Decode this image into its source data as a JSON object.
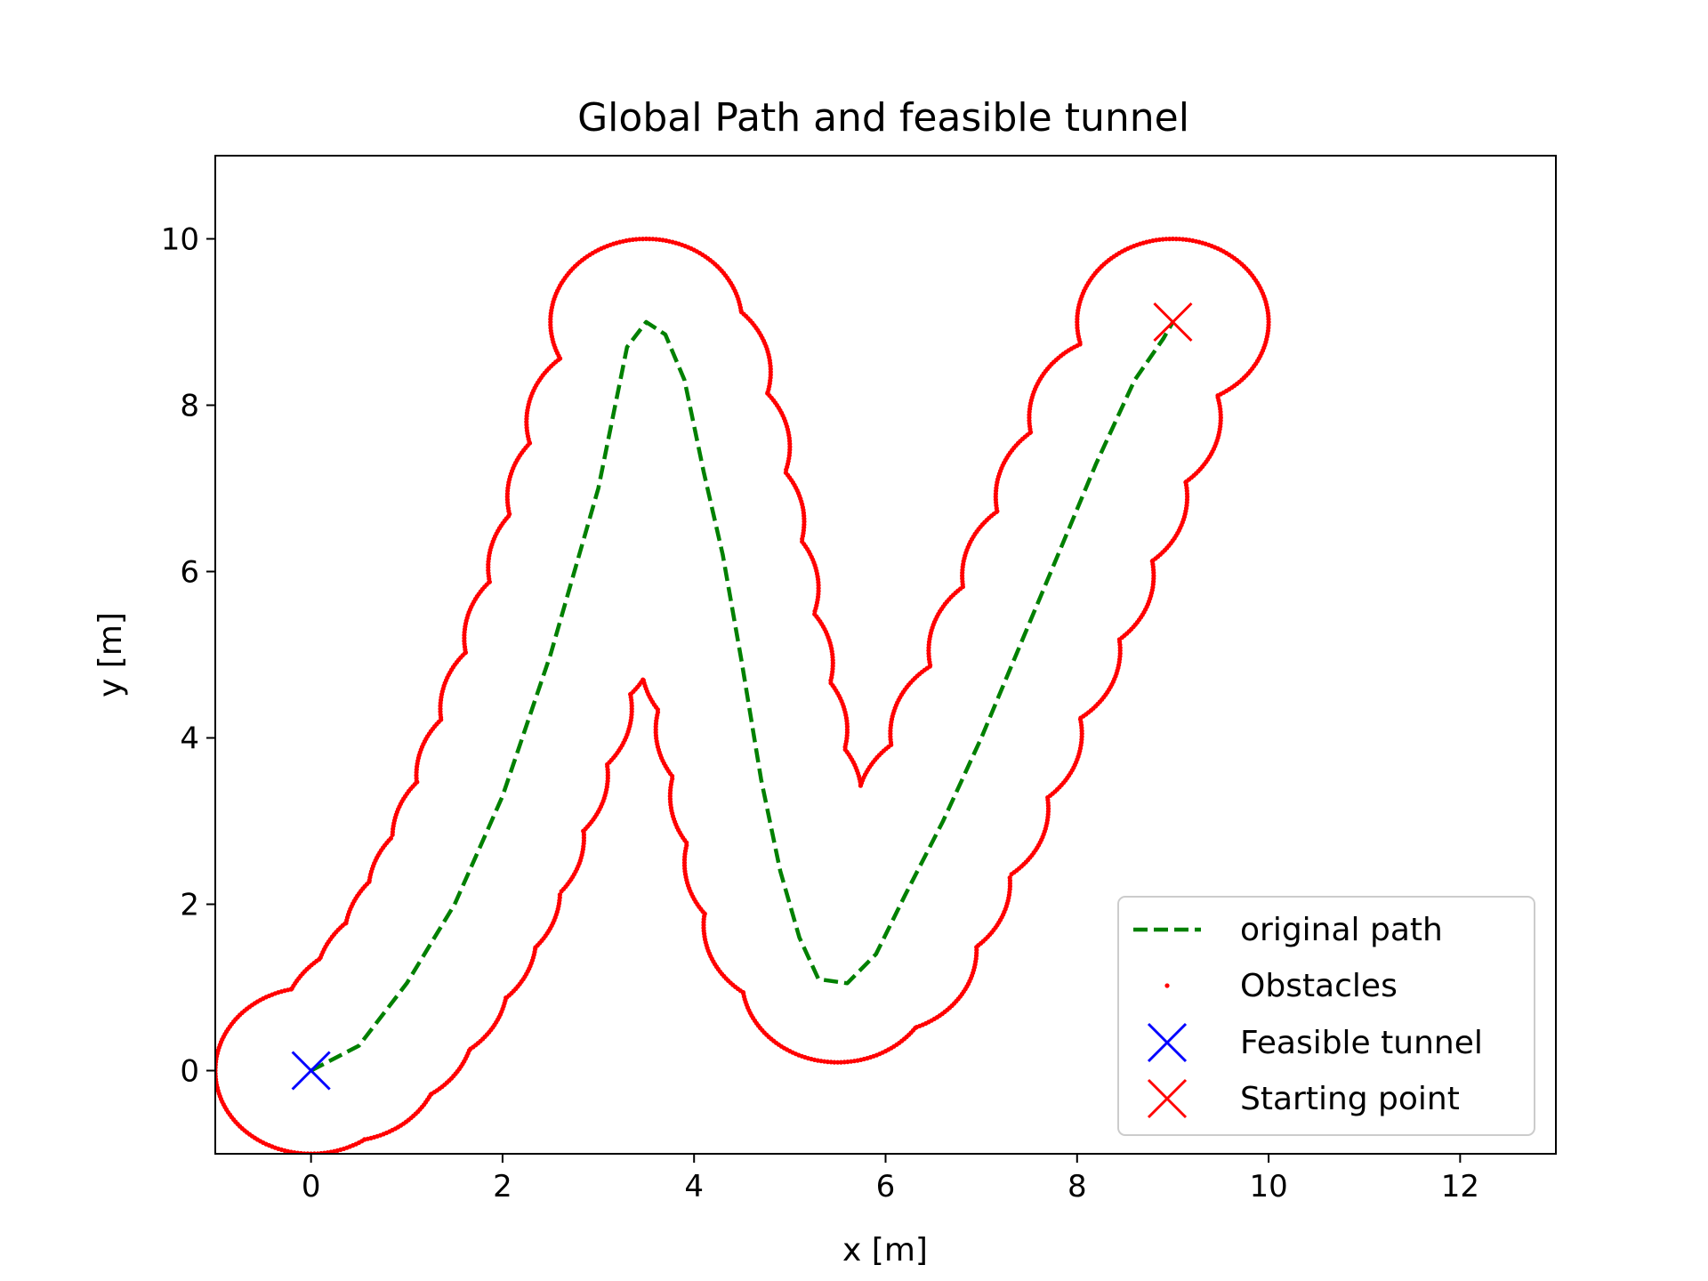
{
  "chart_data": {
    "type": "scatter",
    "title": "Global Path and feasible tunnel",
    "xlabel": "x [m]",
    "ylabel": "y [m]",
    "xlim": [
      -1,
      13
    ],
    "ylim": [
      -1,
      11
    ],
    "xticks": [
      0,
      2,
      4,
      6,
      8,
      10,
      12
    ],
    "yticks": [
      0,
      2,
      4,
      6,
      8,
      10
    ],
    "grid": false,
    "legend_position": "lower-right",
    "series": [
      {
        "name": "original path",
        "kind": "line",
        "style": "dashed",
        "color": "#008000",
        "points": [
          [
            0,
            0
          ],
          [
            0.5,
            0.3
          ],
          [
            1,
            1.05
          ],
          [
            1.5,
            2
          ],
          [
            2,
            3.3
          ],
          [
            2.5,
            5
          ],
          [
            3,
            7
          ],
          [
            3.3,
            8.7
          ],
          [
            3.5,
            9
          ],
          [
            3.7,
            8.85
          ],
          [
            3.9,
            8.3
          ],
          [
            4.1,
            7.2
          ],
          [
            4.3,
            6.2
          ],
          [
            4.5,
            4.9
          ],
          [
            4.7,
            3.5
          ],
          [
            4.9,
            2.4
          ],
          [
            5.1,
            1.6
          ],
          [
            5.3,
            1.1
          ],
          [
            5.6,
            1.05
          ],
          [
            5.9,
            1.4
          ],
          [
            6.2,
            2.1
          ],
          [
            6.6,
            3
          ],
          [
            7,
            4
          ],
          [
            7.4,
            5.1
          ],
          [
            7.8,
            6.2
          ],
          [
            8.2,
            7.3
          ],
          [
            8.6,
            8.3
          ],
          [
            8.9,
            8.8
          ],
          [
            9,
            9
          ]
        ]
      },
      {
        "name": "Obstacles",
        "kind": "points",
        "color": "#ff0000",
        "marker_size": 1,
        "obstacle_radius": 1.0,
        "center_points": [
          [
            0,
            0
          ],
          [
            0.35,
            0.15
          ],
          [
            0.7,
            0.55
          ],
          [
            1.05,
            1.05
          ],
          [
            1.35,
            1.6
          ],
          [
            1.6,
            2.15
          ],
          [
            1.85,
            2.8
          ],
          [
            2.1,
            3.55
          ],
          [
            2.35,
            4.35
          ],
          [
            2.6,
            5.2
          ],
          [
            2.85,
            6.05
          ],
          [
            3.05,
            6.9
          ],
          [
            3.25,
            7.8
          ],
          [
            3.5,
            9
          ],
          [
            3.8,
            8.4
          ],
          [
            4,
            7.5
          ],
          [
            4.15,
            6.6
          ],
          [
            4.3,
            5.8
          ],
          [
            4.45,
            4.9
          ],
          [
            4.6,
            4.1
          ],
          [
            4.75,
            3.3
          ],
          [
            4.9,
            2.5
          ],
          [
            5.1,
            1.75
          ],
          [
            5.5,
            1.1
          ],
          [
            5.95,
            1.45
          ],
          [
            6.3,
            2.25
          ],
          [
            6.7,
            3.15
          ],
          [
            7.05,
            4.05
          ],
          [
            7.45,
            5.05
          ],
          [
            7.8,
            5.95
          ],
          [
            8.15,
            6.9
          ],
          [
            8.5,
            7.85
          ],
          [
            9,
            9
          ]
        ]
      },
      {
        "name": "Feasible tunnel",
        "kind": "marker",
        "marker": "x",
        "color": "#0000ff",
        "points": [
          [
            0,
            0
          ]
        ]
      },
      {
        "name": "Starting point",
        "kind": "marker",
        "marker": "x",
        "color": "#ff0000",
        "points": [
          [
            9,
            9
          ]
        ]
      }
    ]
  }
}
